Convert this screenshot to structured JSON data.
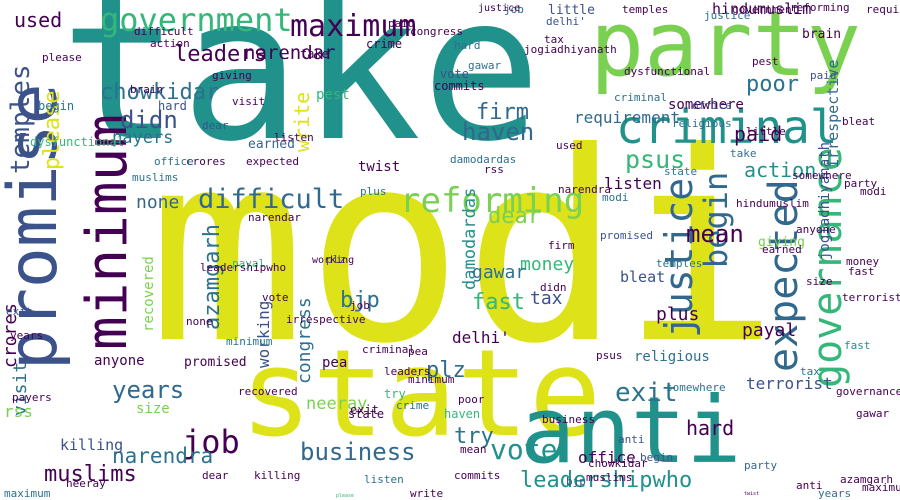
{
  "palette": {
    "teal": "#21918c",
    "yellow": "#dde318",
    "lime": "#7ad151",
    "purple": "#440154",
    "indigo": "#3b528b",
    "green": "#35b779",
    "bluegreen": "#2c728e",
    "navy": "#31688e"
  },
  "words": [
    {
      "text": "take",
      "color": "#21918c"
    },
    {
      "text": "modi",
      "color": "#dde318"
    },
    {
      "text": "party",
      "color": "#7ad151"
    },
    {
      "text": "state",
      "color": "#dde318"
    },
    {
      "text": "anti",
      "color": "#21918c"
    },
    {
      "text": "promise",
      "color": "#3b528b"
    },
    {
      "text": "minimum",
      "color": "#440154"
    },
    {
      "text": "government",
      "color": "#35b779"
    },
    {
      "text": "criminal",
      "color": "#21918c"
    },
    {
      "text": "maximum",
      "color": "#440154"
    },
    {
      "text": "governance",
      "color": "#35b779"
    },
    {
      "text": "expected",
      "color": "#31688e"
    },
    {
      "text": "justice",
      "color": "#31688e"
    },
    {
      "text": "reforming",
      "color": "#7ad151"
    },
    {
      "text": "difficult",
      "color": "#31688e"
    },
    {
      "text": "business",
      "color": "#31688e"
    },
    {
      "text": "vote",
      "color": "#21918c"
    },
    {
      "text": "job",
      "color": "#440154"
    },
    {
      "text": "exit",
      "color": "#2c728e"
    },
    {
      "text": "temples",
      "color": "#3b528b"
    },
    {
      "text": "begin",
      "color": "#31688e"
    },
    {
      "text": "psus",
      "color": "#35b779"
    },
    {
      "text": "leaders",
      "color": "#440154"
    },
    {
      "text": "leadershipwho",
      "color": "#21918c"
    },
    {
      "text": "chowkidar",
      "color": "#2c728e"
    },
    {
      "text": "didn",
      "color": "#3b528b"
    },
    {
      "text": "firm",
      "color": "#31688e"
    },
    {
      "text": "haven",
      "color": "#31688e"
    },
    {
      "text": "narendar",
      "color": "#440154"
    },
    {
      "text": "narendra",
      "color": "#2c728e"
    },
    {
      "text": "poor",
      "color": "#2c728e"
    },
    {
      "text": "years",
      "color": "#31688e"
    },
    {
      "text": "azamgarh",
      "color": "#2c728e"
    },
    {
      "text": "fast",
      "color": "#35b779"
    },
    {
      "text": "plz",
      "color": "#31688e"
    },
    {
      "text": "try",
      "color": "#2c728e"
    },
    {
      "text": "mean",
      "color": "#440154"
    },
    {
      "text": "action",
      "color": "#21918c"
    },
    {
      "text": "dear",
      "color": "#7ad151"
    },
    {
      "text": "money",
      "color": "#35b779"
    },
    {
      "text": "please",
      "color": "#dde318"
    },
    {
      "text": "paid",
      "color": "#440154"
    },
    {
      "text": "write",
      "color": "#dde318"
    },
    {
      "text": "damodardas",
      "color": "#21918c"
    },
    {
      "text": "muslims",
      "color": "#440154"
    },
    {
      "text": "terrorist",
      "color": "#3b528b"
    },
    {
      "text": "hard",
      "color": "#440154"
    },
    {
      "text": "payal",
      "color": "#440154"
    },
    {
      "text": "bjp",
      "color": "#2c728e"
    },
    {
      "text": "congress",
      "color": "#2c728e"
    },
    {
      "text": "crores",
      "color": "#440154"
    },
    {
      "text": "visit",
      "color": "#2c728e"
    },
    {
      "text": "working",
      "color": "#3b528b"
    },
    {
      "text": "requirement",
      "color": "#31688e"
    },
    {
      "text": "none",
      "color": "#31688e"
    },
    {
      "text": "listen",
      "color": "#440154"
    },
    {
      "text": "recovered",
      "color": "#7ad151"
    },
    {
      "text": "used",
      "color": "#440154"
    },
    {
      "text": "payers",
      "color": "#2c728e"
    },
    {
      "text": "neeray",
      "color": "#7ad151"
    },
    {
      "text": "office",
      "color": "#440154"
    },
    {
      "text": "rss",
      "color": "#7ad151"
    },
    {
      "text": "tax",
      "color": "#3b528b"
    },
    {
      "text": "gawar",
      "color": "#2c728e"
    },
    {
      "text": "delhi'",
      "color": "#440154"
    },
    {
      "text": "plus",
      "color": "#440154"
    },
    {
      "text": "size",
      "color": "#7ad151"
    },
    {
      "text": "bleat",
      "color": "#3b528b"
    },
    {
      "text": "killing",
      "color": "#3b528b"
    },
    {
      "text": "anyone",
      "color": "#440154"
    },
    {
      "text": "jogiadhiyanath",
      "color": "#3b528b"
    },
    {
      "text": "earned",
      "color": "#31688e"
    },
    {
      "text": "irrespective",
      "color": "#31688e"
    },
    {
      "text": "somewhere",
      "color": "#440154"
    },
    {
      "text": "hindumuslim",
      "color": "#440154"
    },
    {
      "text": "religious",
      "color": "#2c728e"
    },
    {
      "text": "giving",
      "color": "#7ad151"
    },
    {
      "text": "brain",
      "color": "#440154"
    },
    {
      "text": "crime",
      "color": "#440154"
    },
    {
      "text": "little",
      "color": "#3b528b"
    },
    {
      "text": "commits",
      "color": "#440154"
    },
    {
      "text": "dysfunctional",
      "color": "#35b779"
    },
    {
      "text": "twist",
      "color": "#440154"
    },
    {
      "text": "pest",
      "color": "#35b779"
    },
    {
      "text": "promised",
      "color": "#440154"
    },
    {
      "text": "pea",
      "color": "#440154"
    },
    {
      "text": "fast",
      "color": "#21918c"
    },
    {
      "text": "begin",
      "color": "#2c728e"
    },
    {
      "text": "vote",
      "color": "#3b528b"
    },
    {
      "text": "job",
      "color": "#31688e"
    },
    {
      "text": "take",
      "color": "#440154"
    },
    {
      "text": "state",
      "color": "#440154"
    },
    {
      "text": "modi",
      "color": "#440154"
    },
    {
      "text": "anti",
      "color": "#440154"
    },
    {
      "text": "party",
      "color": "#31688e"
    },
    {
      "text": "justice",
      "color": "#440154"
    },
    {
      "text": "minimum",
      "color": "#440154"
    },
    {
      "text": "listen",
      "color": "#2c728e"
    },
    {
      "text": "hard",
      "color": "#3b528b"
    },
    {
      "text": "exit",
      "color": "#440154"
    },
    {
      "text": "poor",
      "color": "#440154"
    },
    {
      "text": "try",
      "color": "#35b779"
    },
    {
      "text": "haven",
      "color": "#35b779"
    },
    {
      "text": "mean",
      "color": "#440154"
    },
    {
      "text": "plz",
      "color": "#3b528b"
    },
    {
      "text": "money",
      "color": "#440154"
    },
    {
      "text": "working",
      "color": "#440154"
    },
    {
      "text": "crime",
      "color": "#2c728e"
    },
    {
      "text": "paid",
      "color": "#440154"
    },
    {
      "text": "tax",
      "color": "#440154"
    },
    {
      "text": "bjp",
      "color": "#3b528b"
    },
    {
      "text": "plus",
      "color": "#2c728e"
    },
    {
      "text": "rss",
      "color": "#440154"
    },
    {
      "text": "payal",
      "color": "#35b779"
    },
    {
      "text": "leaders",
      "color": "#440154"
    },
    {
      "text": "terrorist",
      "color": "#440154"
    },
    {
      "text": "somewhere",
      "color": "#2c728e"
    },
    {
      "text": "office",
      "color": "#3b528b"
    },
    {
      "text": "maximum",
      "color": "#2c728e"
    },
    {
      "text": "narendar",
      "color": "#440154"
    },
    {
      "text": "muslims",
      "color": "#2c728e"
    },
    {
      "text": "azamgarh",
      "color": "#440154"
    },
    {
      "text": "chowkidar",
      "color": "#440154"
    },
    {
      "text": "action",
      "color": "#440154"
    },
    {
      "text": "dear",
      "color": "#440154"
    },
    {
      "text": "used",
      "color": "#440154"
    },
    {
      "text": "visit",
      "color": "#440154"
    },
    {
      "text": "please",
      "color": "#35b779"
    },
    {
      "text": "write",
      "color": "#440154"
    },
    {
      "text": "size",
      "color": "#440154"
    },
    {
      "text": "firm",
      "color": "#440154"
    },
    {
      "text": "giving",
      "color": "#440154"
    },
    {
      "text": "earned",
      "color": "#440154"
    },
    {
      "text": "expected",
      "color": "#440154"
    },
    {
      "text": "criminal",
      "color": "#440154"
    },
    {
      "text": "business",
      "color": "#440154"
    },
    {
      "text": "gawar",
      "color": "#440154"
    },
    {
      "text": "religious",
      "color": "#2c728e"
    },
    {
      "text": "begin",
      "color": "#3b528b"
    },
    {
      "text": "killing",
      "color": "#440154"
    },
    {
      "text": "twist",
      "color": "#440154"
    },
    {
      "text": "brain",
      "color": "#440154"
    },
    {
      "text": "neeray",
      "color": "#440154"
    },
    {
      "text": "damodardas",
      "color": "#2c728e"
    },
    {
      "text": "little",
      "color": "#440154"
    },
    {
      "text": "commits",
      "color": "#440154"
    },
    {
      "text": "none",
      "color": "#440154"
    },
    {
      "text": "delhi'",
      "color": "#3b528b"
    },
    {
      "text": "crores",
      "color": "#440154"
    },
    {
      "text": "hindumuslim",
      "color": "#440154"
    },
    {
      "text": "congress",
      "color": "#440154"
    },
    {
      "text": "temples",
      "color": "#440154"
    },
    {
      "text": "payers",
      "color": "#440154"
    },
    {
      "text": "years",
      "color": "#440154"
    },
    {
      "text": "requirement",
      "color": "#440154"
    },
    {
      "text": "bleat",
      "color": "#440154"
    },
    {
      "text": "narendra",
      "color": "#440154"
    },
    {
      "text": "governance",
      "color": "#440154"
    },
    {
      "text": "reforming",
      "color": "#440154"
    },
    {
      "text": "pest",
      "color": "#440154"
    },
    {
      "text": "promised",
      "color": "#3b528b"
    },
    {
      "text": "difficult",
      "color": "#440154"
    },
    {
      "text": "recovered",
      "color": "#440154"
    },
    {
      "text": "anyone",
      "color": "#440154"
    },
    {
      "text": "irrespective",
      "color": "#440154"
    },
    {
      "text": "jogiadhiyanath",
      "color": "#440154"
    },
    {
      "text": "dysfunctional",
      "color": "#440154"
    },
    {
      "text": "pea",
      "color": "#440154"
    },
    {
      "text": "government",
      "color": "#440154"
    },
    {
      "text": "psus",
      "color": "#440154"
    },
    {
      "text": "didn",
      "color": "#440154"
    },
    {
      "text": "leadershipwho",
      "color": "#440154"
    },
    {
      "text": "justice",
      "color": "#2c728e"
    },
    {
      "text": "job",
      "color": "#440154"
    },
    {
      "text": "vote",
      "color": "#440154"
    },
    {
      "text": "state",
      "color": "#2c728e"
    },
    {
      "text": "take",
      "color": "#2c728e"
    },
    {
      "text": "minimum",
      "color": "#2c728e"
    },
    {
      "text": "exit",
      "color": "#3b528b"
    },
    {
      "text": "fast",
      "color": "#440154"
    },
    {
      "text": "maximum",
      "color": "#440154"
    },
    {
      "text": "modi",
      "color": "#2c728e"
    },
    {
      "text": "party",
      "color": "#440154"
    },
    {
      "text": "anti",
      "color": "#3b528b"
    },
    {
      "text": "criminal",
      "color": "#2c728e"
    },
    {
      "text": "paid",
      "color": "#3b528b"
    },
    {
      "text": "somewhere",
      "color": "#440154"
    },
    {
      "text": "years",
      "color": "#2c728e"
    },
    {
      "text": "listen",
      "color": "#440154"
    },
    {
      "text": "office",
      "color": "#2c728e"
    },
    {
      "text": "dear",
      "color": "#3b528b"
    },
    {
      "text": "please",
      "color": "#440154"
    },
    {
      "text": "temples",
      "color": "#2c728e"
    },
    {
      "text": "hard",
      "color": "#2c728e"
    },
    {
      "text": "gawar",
      "color": "#2c728e"
    },
    {
      "text": "tax",
      "color": "#2c728e"
    },
    {
      "text": "muslims",
      "color": "#440154"
    },
    {
      "text": "poor",
      "color": "#2c728e"
    }
  ]
}
